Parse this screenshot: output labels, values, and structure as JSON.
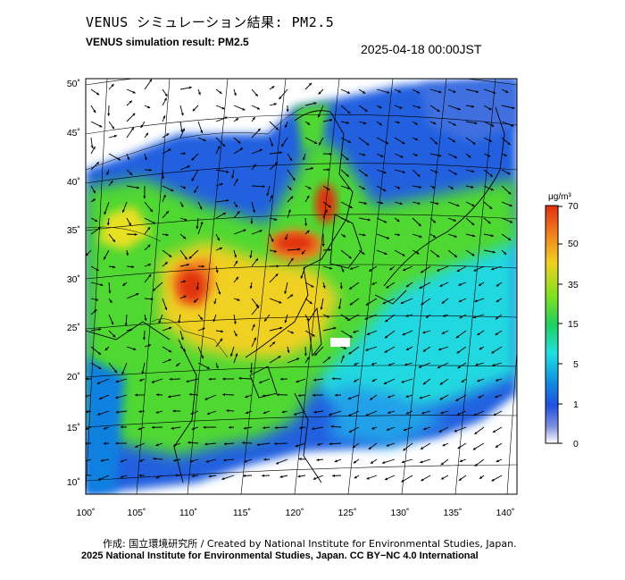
{
  "header": {
    "title_jp": "VENUS シミュレーション結果: PM2.5",
    "title_en": "VENUS simulation result: PM2.5",
    "datetime": "2025-04-18 00:00JST"
  },
  "map": {
    "lon_ticks": [
      "100˚",
      "105˚",
      "110˚",
      "115˚",
      "120˚",
      "125˚",
      "130˚",
      "135˚",
      "140˚"
    ],
    "lat_ticks": [
      "50˚",
      "45˚",
      "40˚",
      "35˚",
      "30˚",
      "25˚",
      "20˚",
      "15˚",
      "10˚"
    ],
    "extent": {
      "lon": [
        100,
        140
      ],
      "lat": [
        10,
        50
      ]
    }
  },
  "colorbar": {
    "unit": "μg/m³",
    "ticks": [
      "70",
      "50",
      "35",
      "15",
      "5",
      "1",
      "0"
    ],
    "colors": [
      "#e03010",
      "#f08020",
      "#f0d020",
      "#80e020",
      "#20d060",
      "#20e0e0",
      "#1090e0",
      "#2050e0",
      "#8090e0",
      "#ffffff"
    ]
  },
  "footer": {
    "credit": "作成: 国立環境研究所 / Created by National Institute for Environmental Studies, Japan.",
    "copyright": "2025 National Institute for Environmental Studies, Japan. CC BY−NC 4.0 International"
  }
}
